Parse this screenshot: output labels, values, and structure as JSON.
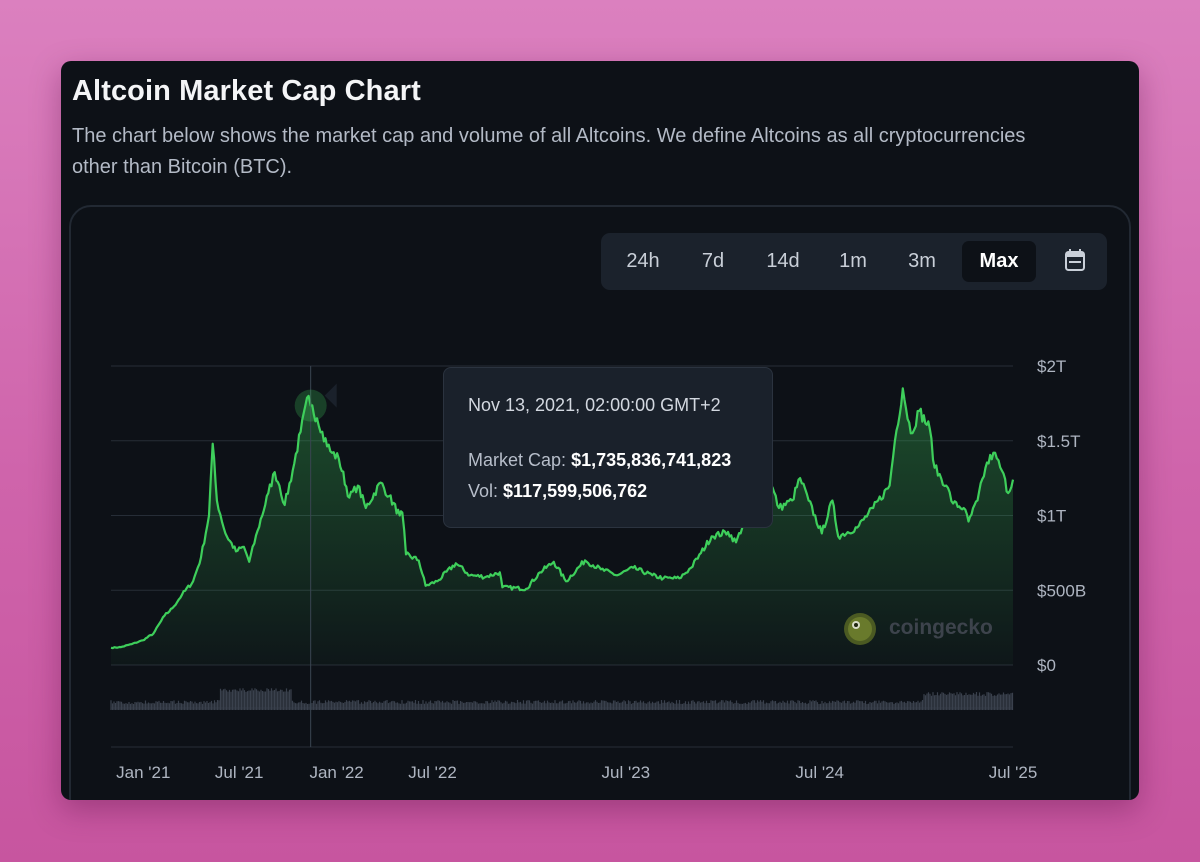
{
  "header": {
    "title": "Altcoin Market Cap Chart",
    "description": "The chart below shows the market cap and volume of all Altcoins. We define Altcoins as all cryptocurrencies other than Bitcoin (BTC)."
  },
  "range_tabs": [
    {
      "label": "24h",
      "active": false
    },
    {
      "label": "7d",
      "active": false
    },
    {
      "label": "14d",
      "active": false
    },
    {
      "label": "1m",
      "active": false
    },
    {
      "label": "3m",
      "active": false
    },
    {
      "label": "Max",
      "active": true
    }
  ],
  "calendar_icon": "calendar-icon",
  "tooltip": {
    "date": "Nov 13, 2021, 02:00:00 GMT+2",
    "market_cap_label": "Market Cap:",
    "market_cap_value": "$1,735,836,741,823",
    "volume_label": "Vol:",
    "volume_value": "$117,599,506,762"
  },
  "watermark": {
    "text": "coingecko",
    "icon": "gecko-logo-icon"
  },
  "colors": {
    "line": "#3ecf5b",
    "grid": "#262d37",
    "volume": "#3a414d",
    "cursor": "#3a4552"
  },
  "chart_data": {
    "type": "area",
    "x_axis": {
      "ticks": [
        "Jan '21",
        "Jul '21",
        "Jan '22",
        "Jul '22",
        "Jul '23",
        "Jul '24",
        "Jul '25"
      ],
      "tick_dates": [
        "2021-01-01",
        "2021-07-01",
        "2022-01-01",
        "2022-07-01",
        "2023-07-01",
        "2024-07-01",
        "2025-07-01"
      ],
      "range": [
        "2020-11-01",
        "2025-07-01"
      ]
    },
    "y_axis": {
      "ticks": [
        "$0",
        "$500B",
        "$1T",
        "$1.5T",
        "$2T"
      ],
      "tick_values": [
        0,
        500,
        1000,
        1500,
        2000
      ],
      "unit": "billion USD",
      "range": [
        0,
        2000
      ]
    },
    "grid": true,
    "hover_date": "2021-11-13",
    "series": [
      {
        "name": "Market Cap",
        "unit": "billion USD",
        "points": [
          [
            "2020-11-01",
            115
          ],
          [
            "2020-11-20",
            120
          ],
          [
            "2020-12-10",
            140
          ],
          [
            "2020-12-31",
            165
          ],
          [
            "2021-01-20",
            210
          ],
          [
            "2021-02-10",
            330
          ],
          [
            "2021-02-25",
            380
          ],
          [
            "2021-03-15",
            470
          ],
          [
            "2021-04-05",
            560
          ],
          [
            "2021-04-20",
            720
          ],
          [
            "2021-05-05",
            1000
          ],
          [
            "2021-05-12",
            1480
          ],
          [
            "2021-05-20",
            1100
          ],
          [
            "2021-06-05",
            880
          ],
          [
            "2021-06-25",
            760
          ],
          [
            "2021-07-10",
            790
          ],
          [
            "2021-07-20",
            690
          ],
          [
            "2021-08-05",
            900
          ],
          [
            "2021-08-25",
            1150
          ],
          [
            "2021-09-06",
            1290
          ],
          [
            "2021-09-15",
            1200
          ],
          [
            "2021-09-25",
            1070
          ],
          [
            "2021-10-10",
            1300
          ],
          [
            "2021-10-25",
            1560
          ],
          [
            "2021-11-09",
            1800
          ],
          [
            "2021-11-13",
            1735
          ],
          [
            "2021-11-25",
            1650
          ],
          [
            "2021-12-05",
            1560
          ],
          [
            "2021-12-20",
            1430
          ],
          [
            "2022-01-05",
            1380
          ],
          [
            "2022-01-25",
            1120
          ],
          [
            "2022-02-10",
            1200
          ],
          [
            "2022-02-25",
            1050
          ],
          [
            "2022-03-25",
            1220
          ],
          [
            "2022-04-10",
            1130
          ],
          [
            "2022-04-30",
            1000
          ],
          [
            "2022-05-05",
            1020
          ],
          [
            "2022-05-12",
            740
          ],
          [
            "2022-06-05",
            700
          ],
          [
            "2022-06-18",
            530
          ],
          [
            "2022-07-10",
            560
          ],
          [
            "2022-08-14",
            680
          ],
          [
            "2022-09-10",
            600
          ],
          [
            "2022-10-10",
            590
          ],
          [
            "2022-11-05",
            620
          ],
          [
            "2022-11-10",
            520
          ],
          [
            "2022-12-25",
            510
          ],
          [
            "2023-01-20",
            620
          ],
          [
            "2023-02-15",
            690
          ],
          [
            "2023-03-10",
            560
          ],
          [
            "2023-04-15",
            700
          ],
          [
            "2023-05-15",
            640
          ],
          [
            "2023-06-15",
            600
          ],
          [
            "2023-07-15",
            650
          ],
          [
            "2023-08-20",
            600
          ],
          [
            "2023-09-10",
            580
          ],
          [
            "2023-10-10",
            580
          ],
          [
            "2023-11-01",
            650
          ],
          [
            "2023-11-20",
            750
          ],
          [
            "2023-12-10",
            860
          ],
          [
            "2024-01-10",
            890
          ],
          [
            "2024-01-25",
            820
          ],
          [
            "2024-02-20",
            1050
          ],
          [
            "2024-03-12",
            1400
          ],
          [
            "2024-03-25",
            1280
          ],
          [
            "2024-04-15",
            1050
          ],
          [
            "2024-05-10",
            1100
          ],
          [
            "2024-05-25",
            1250
          ],
          [
            "2024-06-10",
            1100
          ],
          [
            "2024-07-05",
            880
          ],
          [
            "2024-07-25",
            1100
          ],
          [
            "2024-08-05",
            860
          ],
          [
            "2024-09-10",
            920
          ],
          [
            "2024-10-10",
            1050
          ],
          [
            "2024-11-10",
            1200
          ],
          [
            "2024-11-20",
            1500
          ],
          [
            "2024-12-05",
            1850
          ],
          [
            "2024-12-20",
            1550
          ],
          [
            "2025-01-05",
            1700
          ],
          [
            "2025-01-25",
            1580
          ],
          [
            "2025-02-03",
            1320
          ],
          [
            "2025-02-25",
            1200
          ],
          [
            "2025-03-10",
            1080
          ],
          [
            "2025-03-30",
            1050
          ],
          [
            "2025-04-08",
            960
          ],
          [
            "2025-04-25",
            1100
          ],
          [
            "2025-05-10",
            1320
          ],
          [
            "2025-05-25",
            1420
          ],
          [
            "2025-06-10",
            1300
          ],
          [
            "2025-06-22",
            1150
          ],
          [
            "2025-07-01",
            1240
          ]
        ]
      }
    ]
  }
}
